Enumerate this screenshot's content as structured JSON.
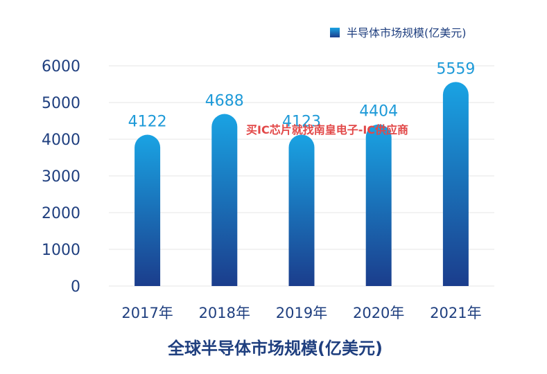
{
  "chart_data": {
    "type": "bar",
    "categories": [
      "2017年",
      "2018年",
      "2019年",
      "2020年",
      "2021年"
    ],
    "series": [
      {
        "name": "半导体市场规模(亿美元)",
        "values": [
          4122,
          4688,
          4123,
          4404,
          5559
        ]
      }
    ],
    "data_labels": [
      "4122",
      "4688",
      "4123",
      "4404",
      "5559"
    ],
    "yticks": [
      "0",
      "1000",
      "2000",
      "3000",
      "4000",
      "5000",
      "6000"
    ],
    "ylim": [
      0,
      6000
    ],
    "grid": true,
    "legend_position": "top-right",
    "title": "全球半导体市场规模(亿美元)",
    "bar_gradient": {
      "top": "#1aa3e3",
      "bottom": "#1b3d8c"
    },
    "colors": {
      "axis_text": "#1f3f7f",
      "data_label": "#1e9ad8",
      "grid": "#e6e6e6"
    }
  },
  "watermark": "买IC芯片就找南皇电子-IC供应商"
}
